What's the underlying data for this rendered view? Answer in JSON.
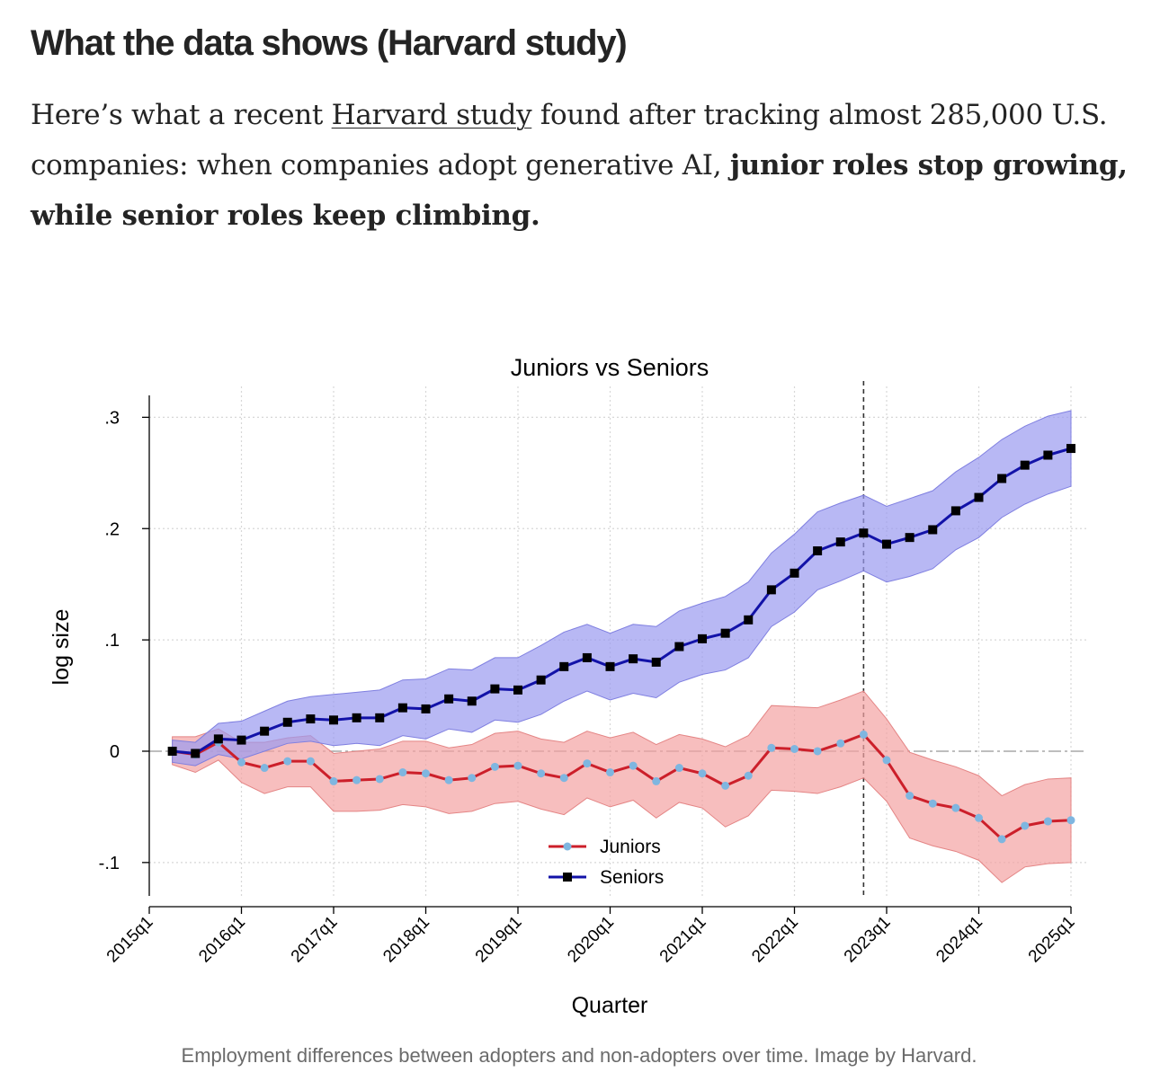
{
  "article": {
    "heading": "What the data shows (Harvard study)",
    "para_intro": "Here’s what a recent ",
    "para_link": "Harvard study",
    "para_mid": " found after tracking almost 285,000 U.S. companies: when companies adopt generative AI, ",
    "para_bold": "junior roles stop growing, while senior roles keep climbing.",
    "caption": "Employment differences between adopters and non-adopters over time. Image by Harvard."
  },
  "colors": {
    "juniors_line": "#cc1f2a",
    "juniors_marker": "#7fb6e0",
    "juniors_band": "#f4a3a3",
    "seniors_line": "#1212a8",
    "seniors_marker": "#000000",
    "seniors_band": "#9a9af0"
  },
  "chart_data": {
    "type": "line",
    "title": "Juniors vs Seniors",
    "xlabel": "Quarter",
    "ylabel": "log size",
    "xlim": [
      0,
      40
    ],
    "ylim": [
      -0.13,
      0.31
    ],
    "xticks": [
      0,
      4,
      8,
      12,
      16,
      20,
      24,
      28,
      32,
      36,
      40
    ],
    "xtick_labels": [
      "2015q1",
      "2016q1",
      "2017q1",
      "2018q1",
      "2019q1",
      "2020q1",
      "2021q1",
      "2022q1",
      "2023q1",
      "2024q1",
      "2025q1"
    ],
    "yticks": [
      -0.1,
      0,
      0.1,
      0.2,
      0.3
    ],
    "ytick_labels": [
      "-.1",
      "0",
      ".1",
      ".2",
      ".3"
    ],
    "event_line_x": 31,
    "reference_line_y": 0,
    "grid": true,
    "legend": {
      "position": "bottom-center",
      "entries": [
        "Juniors",
        "Seniors"
      ]
    },
    "x": [
      1,
      2,
      3,
      4,
      5,
      6,
      7,
      8,
      9,
      10,
      11,
      12,
      13,
      14,
      15,
      16,
      17,
      18,
      19,
      20,
      21,
      22,
      23,
      24,
      25,
      26,
      27,
      28,
      29,
      30,
      31,
      32,
      33,
      34,
      35,
      36,
      37,
      38,
      39,
      40
    ],
    "series": [
      {
        "name": "Juniors",
        "values": [
          0.0,
          -0.003,
          0.008,
          -0.01,
          -0.015,
          -0.009,
          -0.009,
          -0.027,
          -0.026,
          -0.025,
          -0.019,
          -0.02,
          -0.026,
          -0.024,
          -0.014,
          -0.013,
          -0.02,
          -0.024,
          -0.011,
          -0.019,
          -0.013,
          -0.027,
          -0.015,
          -0.02,
          -0.031,
          -0.022,
          0.003,
          0.002,
          0.0,
          0.007,
          0.015,
          -0.008,
          -0.04,
          -0.047,
          -0.051,
          -0.06,
          -0.079,
          -0.067,
          -0.063,
          -0.062
        ],
        "ci_upper": [
          0.013,
          0.013,
          0.02,
          0.008,
          0.008,
          0.012,
          0.014,
          -0.002,
          0.0,
          0.002,
          0.009,
          0.009,
          0.003,
          0.006,
          0.016,
          0.018,
          0.011,
          0.008,
          0.018,
          0.012,
          0.017,
          0.006,
          0.015,
          0.011,
          0.004,
          0.014,
          0.041,
          0.04,
          0.039,
          0.046,
          0.054,
          0.029,
          -0.001,
          -0.008,
          -0.014,
          -0.022,
          -0.04,
          -0.03,
          -0.025,
          -0.024
        ],
        "ci_lower": [
          -0.012,
          -0.019,
          -0.008,
          -0.028,
          -0.038,
          -0.032,
          -0.032,
          -0.054,
          -0.054,
          -0.053,
          -0.048,
          -0.05,
          -0.056,
          -0.054,
          -0.047,
          -0.045,
          -0.052,
          -0.057,
          -0.042,
          -0.05,
          -0.044,
          -0.06,
          -0.046,
          -0.051,
          -0.068,
          -0.058,
          -0.035,
          -0.036,
          -0.038,
          -0.032,
          -0.024,
          -0.045,
          -0.078,
          -0.085,
          -0.09,
          -0.098,
          -0.118,
          -0.104,
          -0.101,
          -0.1
        ]
      },
      {
        "name": "Seniors",
        "values": [
          0.0,
          -0.002,
          0.011,
          0.01,
          0.018,
          0.026,
          0.029,
          0.028,
          0.03,
          0.03,
          0.039,
          0.038,
          0.047,
          0.045,
          0.056,
          0.055,
          0.064,
          0.076,
          0.084,
          0.076,
          0.083,
          0.08,
          0.094,
          0.101,
          0.106,
          0.118,
          0.145,
          0.16,
          0.18,
          0.188,
          0.196,
          0.186,
          0.192,
          0.199,
          0.216,
          0.228,
          0.245,
          0.257,
          0.266,
          0.272
        ],
        "ci_upper": [
          0.01,
          0.008,
          0.025,
          0.027,
          0.036,
          0.045,
          0.049,
          0.051,
          0.053,
          0.055,
          0.064,
          0.065,
          0.074,
          0.073,
          0.084,
          0.084,
          0.095,
          0.107,
          0.114,
          0.106,
          0.114,
          0.112,
          0.126,
          0.133,
          0.139,
          0.152,
          0.178,
          0.195,
          0.215,
          0.223,
          0.23,
          0.22,
          0.227,
          0.234,
          0.251,
          0.264,
          0.28,
          0.292,
          0.301,
          0.306
        ],
        "ci_lower": [
          -0.01,
          -0.013,
          -0.003,
          -0.007,
          0.0,
          0.007,
          0.009,
          0.005,
          0.007,
          0.005,
          0.014,
          0.011,
          0.02,
          0.017,
          0.028,
          0.026,
          0.033,
          0.045,
          0.054,
          0.046,
          0.052,
          0.048,
          0.062,
          0.069,
          0.073,
          0.084,
          0.112,
          0.125,
          0.145,
          0.153,
          0.162,
          0.152,
          0.157,
          0.164,
          0.181,
          0.192,
          0.21,
          0.222,
          0.231,
          0.238
        ]
      }
    ]
  }
}
